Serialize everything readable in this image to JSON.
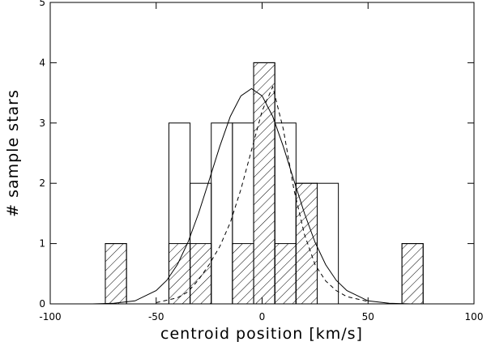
{
  "chart_data": {
    "type": "histogram",
    "xlabel": "centroid position [km/s]",
    "ylabel": "# sample stars",
    "xlim": [
      -100,
      100
    ],
    "ylim": [
      0,
      5
    ],
    "xticks": [
      -100,
      -50,
      0,
      50,
      100
    ],
    "yticks": [
      0,
      1,
      2,
      3,
      4,
      5
    ],
    "bins": [
      -74,
      -64,
      -54,
      -44,
      -34,
      -24,
      -14,
      -4,
      6,
      16,
      26,
      36,
      46,
      56,
      66,
      76
    ],
    "series": [
      {
        "color": "#000000",
        "fill": "none",
        "values": [
          1,
          0,
          0,
          3,
          2,
          3,
          3,
          4,
          3,
          2,
          2,
          0,
          0,
          0,
          1
        ]
      },
      {
        "color": "#000000",
        "fill": "hatch",
        "values": [
          1,
          0,
          0,
          1,
          1,
          0,
          1,
          4,
          1,
          2,
          0,
          0,
          0,
          0,
          1
        ]
      }
    ],
    "lines": [
      {
        "color": "#000000",
        "dash": "solid",
        "x": [
          -100,
          -90,
          -80,
          -70,
          -60,
          -50,
          -45,
          -40,
          -35,
          -30,
          -25,
          -20,
          -15,
          -10,
          -5,
          0,
          5,
          10,
          15,
          20,
          25,
          30,
          35,
          40,
          50,
          60,
          70,
          80,
          90,
          100
        ],
        "values": [
          0,
          0,
          0,
          0.01,
          0.05,
          0.22,
          0.39,
          0.65,
          1.02,
          1.5,
          2.05,
          2.61,
          3.11,
          3.45,
          3.57,
          3.45,
          3.11,
          2.61,
          2.05,
          1.5,
          1.02,
          0.65,
          0.39,
          0.22,
          0.05,
          0.01,
          0,
          0,
          0,
          0
        ]
      },
      {
        "color": "#000000",
        "dash": "dashed",
        "x": [
          -50,
          -40,
          -35,
          -30,
          -25,
          -20,
          -15,
          -10,
          -5,
          0,
          5,
          10,
          15,
          20,
          25,
          30,
          35,
          40,
          50
        ],
        "values": [
          0.02,
          0.1,
          0.2,
          0.4,
          0.65,
          0.95,
          1.35,
          1.9,
          2.55,
          3.2,
          3.6,
          2.9,
          1.9,
          1.15,
          0.65,
          0.38,
          0.22,
          0.12,
          0.04
        ]
      }
    ]
  }
}
